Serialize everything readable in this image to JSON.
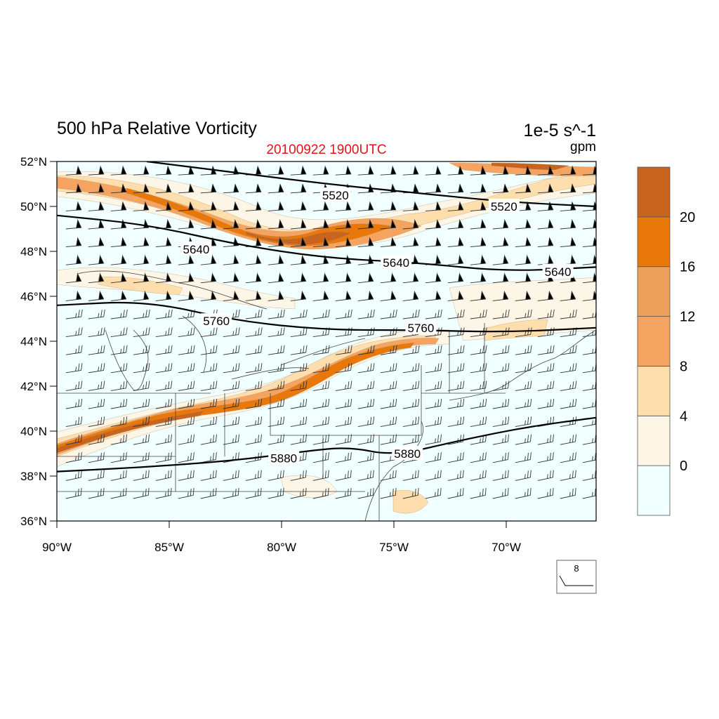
{
  "title": "500 hPa Relative Vorticity",
  "subtitle": "20100922 1900UTC",
  "units_main": "1e-5 s^-1",
  "units_contour": "gpm",
  "colors": {
    "background_fill": "#f0ffff",
    "c0": "#fdf5e6",
    "c1": "#ffdead",
    "c2": "#f4a460",
    "c3": "#eda05c",
    "c4": "#e8780a",
    "c5": "#c8641e",
    "contour": "#000000",
    "subtitle": "#e0141c"
  },
  "chart_data": {
    "type": "contour-map",
    "lon_range": [
      -90,
      -66
    ],
    "lat_range": [
      36,
      52
    ],
    "x_ticks": [
      "90°W",
      "85°W",
      "80°W",
      "75°W",
      "70°W"
    ],
    "x_tick_values": [
      -90,
      -85,
      -80,
      -75,
      -70
    ],
    "y_ticks": [
      "36°N",
      "38°N",
      "40°N",
      "42°N",
      "44°N",
      "46°N",
      "48°N",
      "50°N",
      "52°N"
    ],
    "y_tick_values": [
      36,
      38,
      40,
      42,
      44,
      46,
      48,
      50,
      52
    ],
    "colorbar": {
      "levels": [
        0,
        4,
        8,
        12,
        16,
        20
      ],
      "labels": [
        "0",
        "4",
        "8",
        "12",
        "16",
        "20"
      ]
    },
    "height_contours": [
      {
        "value": 5520,
        "label": "5520",
        "points": [
          [
            -86,
            52
          ],
          [
            -82,
            51.5
          ],
          [
            -78,
            51
          ],
          [
            -74,
            50.6
          ],
          [
            -70,
            50.2
          ],
          [
            -66,
            50
          ]
        ],
        "labels": [
          [
            -77.6,
            50.5
          ],
          [
            -70.1,
            50.0
          ]
        ]
      },
      {
        "value": 5640,
        "label": "5640",
        "points": [
          [
            -90,
            49.6
          ],
          [
            -86,
            49.2
          ],
          [
            -82,
            48.3
          ],
          [
            -78,
            47.7
          ],
          [
            -74,
            47.5
          ],
          [
            -70,
            47.1
          ],
          [
            -66,
            47.3
          ]
        ],
        "labels": [
          [
            -83.8,
            48.1
          ],
          [
            -74.9,
            47.5
          ],
          [
            -67.7,
            47.1
          ]
        ]
      },
      {
        "value": 5760,
        "label": "5760",
        "points": [
          [
            -90,
            45.6
          ],
          [
            -86,
            45.8
          ],
          [
            -82,
            44.9
          ],
          [
            -78,
            44.5
          ],
          [
            -74,
            44.5
          ],
          [
            -70,
            44.4
          ],
          [
            -66,
            44.6
          ]
        ],
        "labels": [
          [
            -82.9,
            44.9
          ],
          [
            -73.8,
            44.6
          ]
        ]
      },
      {
        "value": 5880,
        "label": "5880",
        "points": [
          [
            -90,
            38.2
          ],
          [
            -86,
            38.4
          ],
          [
            -82,
            38.7
          ],
          [
            -79,
            39.1
          ],
          [
            -77,
            39.3
          ],
          [
            -75,
            38.9
          ],
          [
            -72,
            39.6
          ],
          [
            -69,
            40.2
          ],
          [
            -66,
            40.6
          ]
        ],
        "labels": [
          [
            -79.9,
            38.8
          ],
          [
            -74.4,
            39.0
          ]
        ]
      }
    ],
    "reference_vector": "8"
  }
}
